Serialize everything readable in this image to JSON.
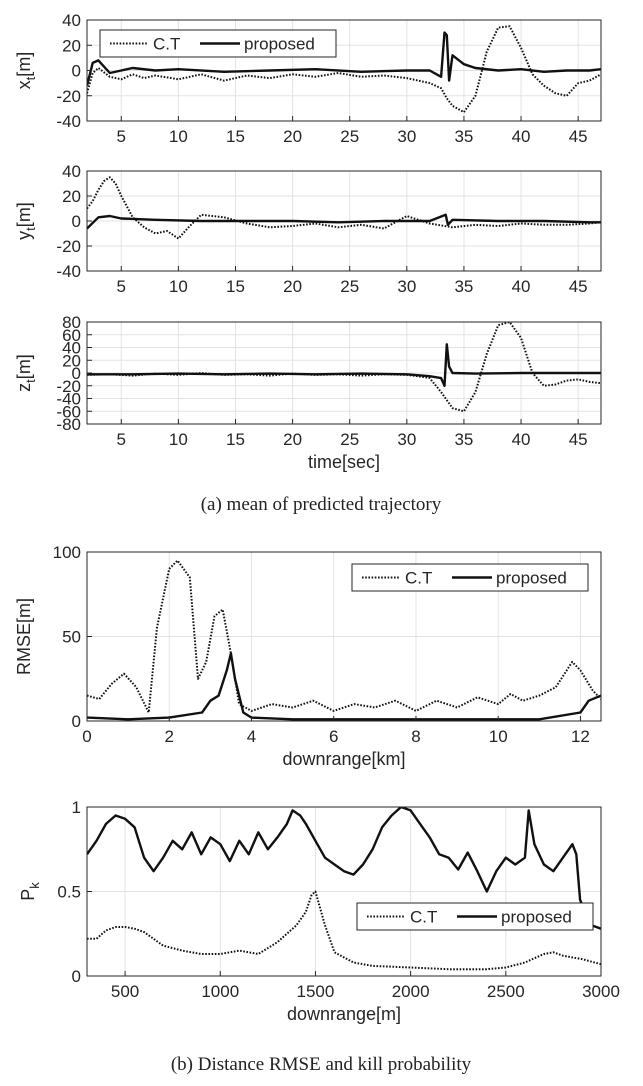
{
  "figure": {
    "caption_a": "(a) mean of predicted trajectory",
    "caption_b": "(b) Distance RMSE and kill probability"
  },
  "chart_data": [
    {
      "type": "line",
      "id": "xt",
      "ylabel_main": "x",
      "ylabel_sub": "t",
      "ylabel_unit": "[m]",
      "xlabel": "",
      "xlim": [
        2,
        47
      ],
      "ylim": [
        -40,
        40
      ],
      "xticks": [
        5,
        10,
        15,
        20,
        25,
        30,
        35,
        40,
        45
      ],
      "yticks": [
        -40,
        -20,
        0,
        20,
        40
      ],
      "grid": true,
      "legend": {
        "position": "top-left",
        "entries": [
          "C.T",
          "proposed"
        ]
      },
      "series": [
        {
          "name": "C.T",
          "style": "dotted",
          "x": [
            2,
            2.5,
            3,
            4,
            5,
            6,
            7,
            8,
            10,
            12,
            14,
            16,
            18,
            20,
            22,
            24,
            26,
            28,
            30,
            31,
            32,
            33,
            33.5,
            34,
            35,
            36,
            37,
            38,
            39,
            40,
            41,
            42,
            43,
            44,
            45,
            46,
            47
          ],
          "y": [
            -18,
            -2,
            2,
            -5,
            -7,
            -3,
            -6,
            -4,
            -7,
            -3,
            -8,
            -4,
            -6,
            -3,
            -5,
            -2,
            -5,
            -4,
            -6,
            -8,
            -10,
            -14,
            -22,
            -28,
            -33,
            -20,
            15,
            34,
            35,
            18,
            -3,
            -12,
            -18,
            -20,
            -10,
            -8,
            -3
          ]
        },
        {
          "name": "proposed",
          "style": "solid",
          "x": [
            2,
            2.5,
            3,
            4,
            5,
            6,
            8,
            10,
            14,
            18,
            22,
            26,
            30,
            32,
            33,
            33.3,
            33.5,
            33.7,
            34,
            35,
            36,
            38,
            40,
            42,
            44,
            46,
            47
          ],
          "y": [
            -12,
            6,
            8,
            -2,
            0,
            2,
            0,
            1,
            -1,
            0,
            1,
            -1,
            0,
            0,
            -5,
            30,
            28,
            -8,
            12,
            5,
            2,
            0,
            1,
            -1,
            0,
            0,
            1
          ]
        }
      ]
    },
    {
      "type": "line",
      "id": "yt",
      "ylabel_main": "y",
      "ylabel_sub": "t",
      "ylabel_unit": "[m]",
      "xlabel": "",
      "xlim": [
        2,
        47
      ],
      "ylim": [
        -40,
        40
      ],
      "xticks": [
        5,
        10,
        15,
        20,
        25,
        30,
        35,
        40,
        45
      ],
      "yticks": [
        -40,
        -20,
        0,
        20,
        40
      ],
      "grid": true,
      "series": [
        {
          "name": "C.T",
          "style": "dotted",
          "x": [
            2,
            2.5,
            3,
            3.5,
            4,
            4.5,
            5,
            6,
            7,
            8,
            9,
            10,
            11,
            12,
            14,
            16,
            18,
            20,
            22,
            24,
            26,
            28,
            30,
            32,
            34,
            36,
            38,
            40,
            42,
            44,
            46,
            47
          ],
          "y": [
            10,
            16,
            25,
            32,
            35,
            30,
            20,
            3,
            -5,
            -10,
            -8,
            -14,
            -4,
            5,
            3,
            -2,
            -5,
            -4,
            -2,
            -5,
            -3,
            -6,
            4,
            -2,
            -5,
            -3,
            -4,
            -2,
            -3,
            -3,
            -2,
            -1
          ]
        },
        {
          "name": "proposed",
          "style": "solid",
          "x": [
            2,
            3,
            4,
            5,
            8,
            12,
            16,
            20,
            24,
            28,
            32,
            33.4,
            33.6,
            34,
            38,
            42,
            46,
            47
          ],
          "y": [
            -6,
            3,
            4,
            2,
            1,
            0,
            0,
            0,
            -1,
            0,
            0,
            5,
            -3,
            1,
            0,
            0,
            -1,
            -1
          ]
        }
      ]
    },
    {
      "type": "line",
      "id": "zt",
      "ylabel_main": "z",
      "ylabel_sub": "t",
      "ylabel_unit": "[m]",
      "xlabel": "time[sec]",
      "xlim": [
        2,
        47
      ],
      "ylim": [
        -80,
        80
      ],
      "xticks": [
        5,
        10,
        15,
        20,
        25,
        30,
        35,
        40,
        45
      ],
      "yticks": [
        -80,
        -60,
        -40,
        -20,
        0,
        20,
        40,
        60,
        80
      ],
      "grid": true,
      "series": [
        {
          "name": "C.T",
          "style": "dotted",
          "x": [
            2,
            4,
            6,
            8,
            10,
            12,
            14,
            16,
            18,
            20,
            22,
            24,
            26,
            28,
            30,
            31,
            32,
            33,
            34,
            35,
            36,
            37,
            38,
            39,
            40,
            41,
            42,
            43,
            44,
            45,
            46,
            47
          ],
          "y": [
            -3,
            -2,
            -4,
            -1,
            -3,
            0,
            -3,
            -2,
            -4,
            -1,
            -3,
            -2,
            -4,
            -2,
            -3,
            -5,
            -8,
            -30,
            -55,
            -60,
            -30,
            30,
            75,
            80,
            55,
            0,
            -20,
            -18,
            -12,
            -10,
            -14,
            -16
          ]
        },
        {
          "name": "proposed",
          "style": "solid",
          "x": [
            2,
            6,
            10,
            14,
            18,
            22,
            26,
            30,
            32,
            33,
            33.3,
            33.5,
            33.7,
            34,
            36,
            40,
            44,
            47
          ],
          "y": [
            -2,
            -2,
            -1,
            -2,
            -1,
            -2,
            -1,
            -2,
            -5,
            -8,
            -20,
            45,
            10,
            0,
            -1,
            0,
            0,
            0
          ]
        }
      ]
    },
    {
      "type": "line",
      "id": "rmse",
      "ylabel": "RMSE[m]",
      "xlabel": "downrange[km]",
      "xlim": [
        0,
        12.5
      ],
      "ylim": [
        0,
        100
      ],
      "xticks": [
        0,
        2,
        4,
        6,
        8,
        10,
        12
      ],
      "yticks": [
        0,
        50,
        100
      ],
      "grid": true,
      "legend": {
        "position": "top-right",
        "entries": [
          "C.T",
          "proposed"
        ]
      },
      "series": [
        {
          "name": "C.T",
          "style": "dotted",
          "x": [
            0,
            0.3,
            0.6,
            0.9,
            1.2,
            1.5,
            1.7,
            2.0,
            2.2,
            2.5,
            2.7,
            2.9,
            3.1,
            3.3,
            3.5,
            3.7,
            4.0,
            4.5,
            5,
            5.5,
            6,
            6.5,
            7,
            7.5,
            8,
            8.5,
            9,
            9.5,
            10,
            10.3,
            10.6,
            11,
            11.4,
            11.8,
            12.0,
            12.3,
            12.5
          ],
          "y": [
            15,
            13,
            22,
            28,
            20,
            5,
            55,
            90,
            95,
            85,
            25,
            35,
            62,
            66,
            40,
            10,
            6,
            10,
            8,
            12,
            6,
            10,
            8,
            12,
            6,
            12,
            8,
            14,
            10,
            16,
            12,
            15,
            20,
            35,
            30,
            18,
            13
          ]
        },
        {
          "name": "proposed",
          "style": "solid",
          "x": [
            0,
            1,
            2,
            2.8,
            3.0,
            3.2,
            3.4,
            3.5,
            3.6,
            3.8,
            4.0,
            5,
            6,
            7,
            8,
            9,
            10,
            11,
            12.0,
            12.2,
            12.5
          ],
          "y": [
            2,
            1,
            2,
            5,
            12,
            15,
            30,
            40,
            25,
            5,
            2,
            1,
            1,
            1,
            1,
            1,
            1,
            1,
            5,
            12,
            15
          ]
        }
      ]
    },
    {
      "type": "line",
      "id": "pk",
      "ylabel_main": "P",
      "ylabel_sub": "k",
      "xlabel": "downrange[m]",
      "xlim": [
        300,
        3000
      ],
      "ylim": [
        0,
        1
      ],
      "xticks": [
        500,
        1000,
        1500,
        2000,
        2500,
        3000
      ],
      "yticks": [
        0,
        0.5,
        1
      ],
      "grid": true,
      "legend": {
        "position": "right",
        "entries": [
          "C.T",
          "proposed"
        ]
      },
      "series": [
        {
          "name": "C.T",
          "style": "dotted",
          "x": [
            300,
            350,
            400,
            450,
            500,
            550,
            600,
            700,
            800,
            900,
            1000,
            1100,
            1200,
            1300,
            1400,
            1450,
            1480,
            1500,
            1550,
            1600,
            1700,
            1800,
            2000,
            2200,
            2400,
            2500,
            2600,
            2700,
            2750,
            2800,
            2900,
            3000
          ],
          "y": [
            0.22,
            0.22,
            0.27,
            0.29,
            0.29,
            0.28,
            0.26,
            0.18,
            0.15,
            0.13,
            0.13,
            0.15,
            0.13,
            0.2,
            0.3,
            0.38,
            0.48,
            0.5,
            0.3,
            0.14,
            0.08,
            0.06,
            0.05,
            0.04,
            0.04,
            0.05,
            0.08,
            0.13,
            0.14,
            0.12,
            0.1,
            0.07
          ]
        },
        {
          "name": "proposed",
          "style": "solid",
          "x": [
            300,
            350,
            400,
            450,
            500,
            550,
            600,
            650,
            700,
            750,
            800,
            850,
            900,
            950,
            1000,
            1050,
            1100,
            1150,
            1200,
            1250,
            1300,
            1350,
            1380,
            1420,
            1450,
            1500,
            1550,
            1600,
            1650,
            1700,
            1750,
            1800,
            1850,
            1900,
            1950,
            2000,
            2050,
            2100,
            2150,
            2200,
            2250,
            2300,
            2350,
            2400,
            2450,
            2500,
            2550,
            2600,
            2620,
            2650,
            2700,
            2750,
            2800,
            2850,
            2870,
            2890,
            2950,
            3000
          ],
          "y": [
            0.72,
            0.8,
            0.9,
            0.95,
            0.93,
            0.88,
            0.7,
            0.62,
            0.7,
            0.8,
            0.75,
            0.85,
            0.72,
            0.82,
            0.78,
            0.68,
            0.8,
            0.72,
            0.85,
            0.75,
            0.82,
            0.9,
            0.98,
            0.95,
            0.9,
            0.8,
            0.7,
            0.66,
            0.62,
            0.6,
            0.66,
            0.75,
            0.88,
            0.95,
            1.0,
            0.98,
            0.9,
            0.82,
            0.72,
            0.7,
            0.63,
            0.73,
            0.62,
            0.5,
            0.62,
            0.7,
            0.66,
            0.7,
            0.98,
            0.78,
            0.66,
            0.62,
            0.7,
            0.78,
            0.72,
            0.45,
            0.3,
            0.28
          ]
        }
      ]
    }
  ]
}
